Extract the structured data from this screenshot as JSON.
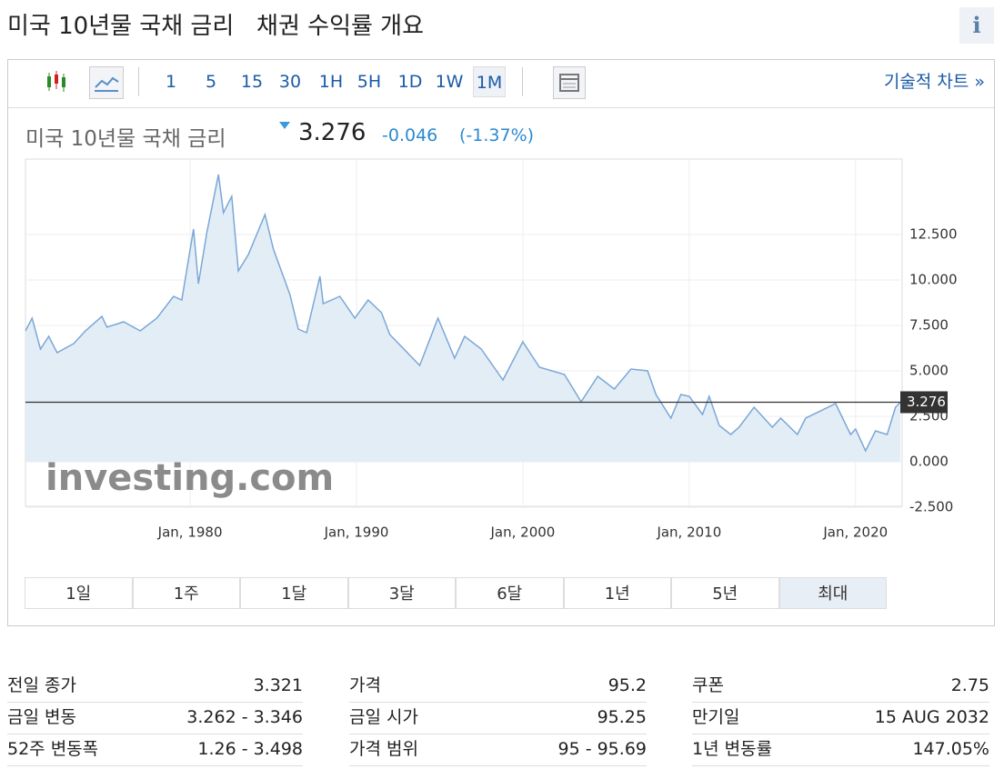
{
  "header": {
    "title": "미국 10년물 국채 금리",
    "subtitle": "채권 수익률 개요",
    "info": "i"
  },
  "toolbar": {
    "intervals": [
      "1",
      "5",
      "15",
      "30",
      "1H",
      "5H",
      "1D",
      "1W",
      "1M"
    ],
    "selected": "1M",
    "link": "기술적 차트 »"
  },
  "quote": {
    "name": "미국 10년물 국채 금리",
    "price": "3.276",
    "change": "-0.046",
    "change_pct": "(-1.37%)"
  },
  "chart_data": {
    "type": "area",
    "watermark": "investing.com",
    "x": [
      1970.1,
      1970.5,
      1971.0,
      1971.5,
      1972.0,
      1973.0,
      1973.7,
      1974.7,
      1975.0,
      1976.0,
      1977.0,
      1978.0,
      1979.0,
      1979.5,
      1980.2,
      1980.5,
      1981.0,
      1981.7,
      1982.0,
      1982.5,
      1982.9,
      1983.5,
      1984.5,
      1985.0,
      1986.0,
      1986.5,
      1987.0,
      1987.8,
      1988.0,
      1989.0,
      1989.9,
      1990.7,
      1991.5,
      1992.0,
      1993.8,
      1994.9,
      1995.9,
      1996.5,
      1997.5,
      1998.8,
      2000.0,
      2001.0,
      2002.5,
      2003.5,
      2004.5,
      2005.5,
      2006.5,
      2007.5,
      2008.0,
      2008.9,
      2009.5,
      2010.0,
      2010.8,
      2011.2,
      2011.8,
      2012.5,
      2013.0,
      2013.9,
      2015.0,
      2015.5,
      2016.5,
      2017.0,
      2018.8,
      2019.7,
      2020.0,
      2020.6,
      2021.2,
      2021.9,
      2022.4,
      2022.7
    ],
    "series": [
      {
        "color": "#7ba7d7",
        "fill": "#e3edf6",
        "values": [
          7.2,
          7.9,
          6.2,
          6.9,
          6.0,
          6.5,
          7.2,
          8.0,
          7.4,
          7.7,
          7.2,
          7.9,
          9.1,
          8.9,
          12.8,
          9.8,
          12.6,
          15.8,
          13.7,
          14.6,
          10.5,
          11.4,
          13.6,
          11.7,
          9.2,
          7.3,
          7.1,
          10.2,
          8.7,
          9.1,
          7.9,
          8.9,
          8.2,
          7.0,
          5.3,
          7.9,
          5.7,
          6.9,
          6.2,
          4.5,
          6.6,
          5.2,
          4.8,
          3.3,
          4.7,
          4.0,
          5.1,
          5.0,
          3.7,
          2.4,
          3.7,
          3.6,
          2.6,
          3.6,
          2.0,
          1.5,
          1.9,
          3.0,
          1.9,
          2.4,
          1.5,
          2.4,
          3.2,
          1.5,
          1.8,
          0.6,
          1.7,
          1.5,
          3.0,
          3.276
        ]
      }
    ],
    "last_value": 3.276,
    "xlim": [
      1970.1,
      2022.8
    ],
    "ylim": [
      -2.45,
      16.65
    ],
    "xticks": [
      {
        "value": 1980,
        "label": "Jan, 1980"
      },
      {
        "value": 1990,
        "label": "Jan, 1990"
      },
      {
        "value": 2000,
        "label": "Jan, 2000"
      },
      {
        "value": 2010,
        "label": "Jan, 2010"
      },
      {
        "value": 2020,
        "label": "Jan, 2020"
      }
    ],
    "yticks": [
      {
        "value": 12.5,
        "label": "12.500"
      },
      {
        "value": 10,
        "label": "10.000"
      },
      {
        "value": 7.5,
        "label": "7.500"
      },
      {
        "value": 5,
        "label": "5.000"
      },
      {
        "value": 2.5,
        "label": "2.500"
      },
      {
        "value": 0,
        "label": "0.000"
      },
      {
        "value": -2.5,
        "label": "-2.500"
      }
    ],
    "grid": true
  },
  "ranges": {
    "buttons": [
      "1일",
      "1주",
      "1달",
      "3달",
      "6달",
      "1년",
      "5년",
      "최대"
    ],
    "selected": "최대"
  },
  "stats": {
    "columns": [
      [
        [
          "전일 종가",
          "3.321"
        ],
        [
          "금일 변동",
          "3.262 - 3.346"
        ],
        [
          "52주 변동폭",
          "1.26 - 3.498"
        ]
      ],
      [
        [
          "가격",
          "95.2"
        ],
        [
          "금일 시가",
          "95.25"
        ],
        [
          "가격 범위",
          "95 - 95.69"
        ]
      ],
      [
        [
          "쿠폰",
          "2.75"
        ],
        [
          "만기일",
          "15 AUG 2032"
        ],
        [
          "1년 변동률",
          "147.05%"
        ]
      ]
    ]
  }
}
